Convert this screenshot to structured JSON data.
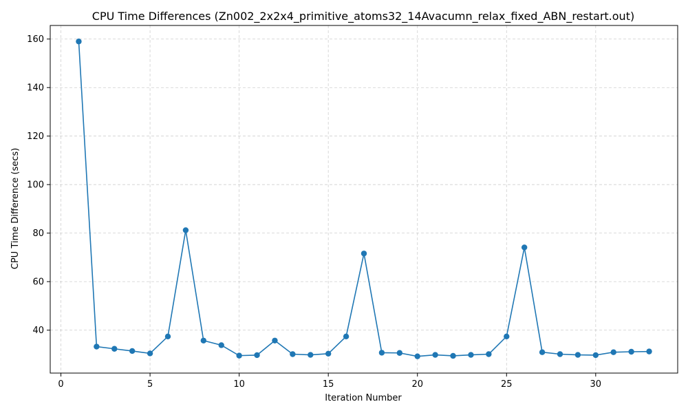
{
  "chart_data": {
    "type": "line",
    "title": "CPU Time Differences (Zn002_2x2x4_primitive_atoms32_14Avacumn_relax_fixed_ABN_restart.out)",
    "xlabel": "Iteration Number",
    "ylabel": "CPU Time Difference (secs)",
    "xlim": [
      -0.6,
      34.6
    ],
    "ylim": [
      22.3,
      165.6
    ],
    "xticks": [
      0,
      5,
      10,
      15,
      20,
      25,
      30
    ],
    "yticks": [
      40,
      60,
      80,
      100,
      120,
      140,
      160
    ],
    "grid": true,
    "series": [
      {
        "color": "#1f77b4",
        "marker": "circle",
        "x": [
          1,
          2,
          3,
          4,
          5,
          6,
          7,
          8,
          9,
          10,
          11,
          12,
          13,
          14,
          15,
          16,
          17,
          18,
          19,
          20,
          21,
          22,
          23,
          24,
          25,
          26,
          27,
          28,
          29,
          30,
          31,
          32,
          33
        ],
        "y": [
          159.0,
          33.2,
          32.3,
          31.4,
          30.4,
          37.4,
          81.2,
          35.7,
          33.8,
          29.5,
          29.7,
          35.7,
          30.1,
          29.8,
          30.3,
          37.4,
          71.6,
          30.7,
          30.6,
          29.2,
          29.8,
          29.4,
          29.8,
          30.1,
          37.4,
          74.1,
          30.9,
          30.1,
          29.8,
          29.7,
          30.9,
          31.1,
          31.2
        ]
      }
    ]
  }
}
